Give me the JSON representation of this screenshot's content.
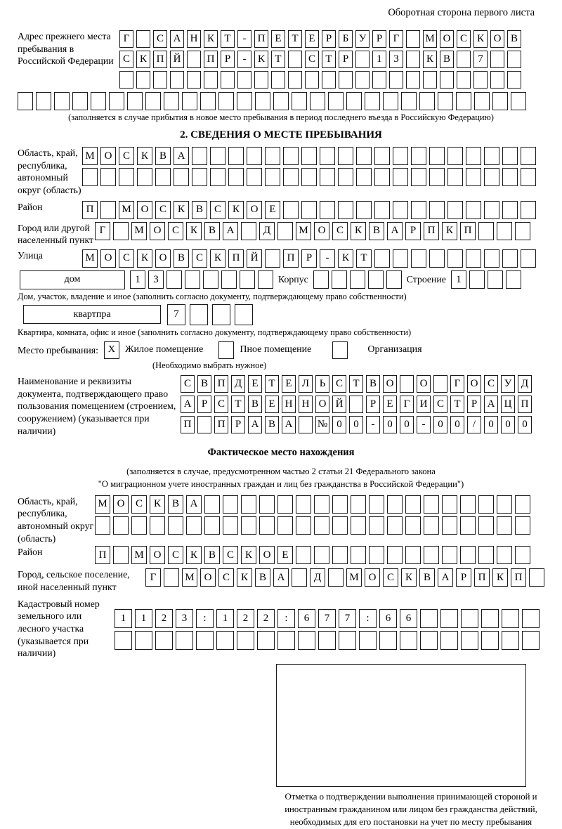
{
  "page": {
    "header_note": "Оборотная сторона первого листа"
  },
  "prev_address": {
    "label": "Адрес прежнего места пребывания в Российской Федерации",
    "rows": [
      [
        "Г",
        "",
        "С",
        "А",
        "Н",
        "К",
        "Т",
        "-",
        "П",
        "Е",
        "Т",
        "Е",
        "Р",
        "Б",
        "У",
        "Р",
        "Г",
        "",
        "М",
        "О",
        "С",
        "К",
        "О",
        "В"
      ],
      [
        "С",
        "К",
        "П",
        "Й",
        "",
        "П",
        "Р",
        "-",
        "К",
        "Т",
        "",
        "С",
        "Т",
        "Р",
        "",
        "1",
        "3",
        "",
        "К",
        "В",
        "",
        "7",
        "",
        ""
      ],
      [
        "",
        "",
        "",
        "",
        "",
        "",
        "",
        "",
        "",
        "",
        "",
        "",
        "",
        "",
        "",
        "",
        "",
        "",
        "",
        "",
        "",
        "",
        "",
        ""
      ]
    ],
    "full_row": [
      "",
      "",
      "",
      "",
      "",
      "",
      "",
      "",
      "",
      "",
      "",
      "",
      "",
      "",
      "",
      "",
      "",
      "",
      "",
      "",
      "",
      "",
      "",
      "",
      "",
      "",
      "",
      ""
    ],
    "note": "(заполняется в случае прибытия в новое место пребывания в период последнего въезда в Российскую Федерацию)"
  },
  "section2": {
    "title": "2. СВЕДЕНИЯ О МЕСТЕ ПРЕБЫВАНИЯ",
    "region": {
      "label": "Область, край, республика, автономный округ (область)",
      "rows": [
        [
          "М",
          "О",
          "С",
          "К",
          "В",
          "А",
          "",
          "",
          "",
          "",
          "",
          "",
          "",
          "",
          "",
          "",
          "",
          "",
          "",
          "",
          "",
          "",
          "",
          "",
          ""
        ],
        [
          "",
          "",
          "",
          "",
          "",
          "",
          "",
          "",
          "",
          "",
          "",
          "",
          "",
          "",
          "",
          "",
          "",
          "",
          "",
          "",
          "",
          "",
          "",
          "",
          ""
        ]
      ]
    },
    "district": {
      "label": "Район",
      "row": [
        "П",
        "",
        "М",
        "О",
        "С",
        "К",
        "В",
        "С",
        "К",
        "О",
        "Е",
        "",
        "",
        "",
        "",
        "",
        "",
        "",
        "",
        "",
        "",
        "",
        "",
        "",
        ""
      ]
    },
    "city": {
      "label": "Город или другой населенный пункт",
      "row": [
        "Г",
        "",
        "М",
        "О",
        "С",
        "К",
        "В",
        "А",
        "",
        "Д",
        "",
        "М",
        "О",
        "С",
        "К",
        "В",
        "А",
        "Р",
        "П",
        "К",
        "П",
        "",
        "",
        ""
      ]
    },
    "street": {
      "label": "Улица",
      "row": [
        "М",
        "О",
        "С",
        "К",
        "О",
        "В",
        "С",
        "К",
        "П",
        "Й",
        "",
        "П",
        "Р",
        "-",
        "К",
        "Т",
        "",
        "",
        "",
        "",
        "",
        "",
        "",
        "",
        ""
      ]
    },
    "house": {
      "house_label": "дом",
      "house_cells": [
        "1",
        "3",
        "",
        "",
        "",
        "",
        "",
        ""
      ],
      "korpus_label": "Корпус",
      "korpus_cells": [
        "",
        "",
        "",
        "",
        ""
      ],
      "stroenie_label": "Строение",
      "stroenie_cells": [
        "1",
        "",
        "",
        ""
      ]
    },
    "house_note": "Дом, участок, владение и иное (заполнить согласно документу, подтверждающему право собственности)",
    "apartment": {
      "label": "квартпра",
      "cells": [
        "7",
        "",
        "",
        ""
      ]
    },
    "apartment_note": "Квартира, комната, офис и иное (заполнить согласно документу, подтверждающему право собственности)",
    "stay_type": {
      "label": "Место пребывания:",
      "options": [
        {
          "label": "Жилое помещение",
          "mark": "X"
        },
        {
          "label": "Пное помещение",
          "mark": ""
        },
        {
          "label": "Организация",
          "mark": ""
        }
      ],
      "note": "(Необходимо выбрать нужное)"
    },
    "document": {
      "label": "Наименование и реквизиты документа, подтверждающего право пользования помещением (строением, сооружением) (указывается при наличии)",
      "rows": [
        [
          "С",
          "В",
          "П",
          "Д",
          "Е",
          "Т",
          "Е",
          "Л",
          "Ь",
          "С",
          "Т",
          "В",
          "О",
          "",
          "О",
          "",
          "Г",
          "О",
          "С",
          "У",
          "Д"
        ],
        [
          "А",
          "Р",
          "С",
          "Т",
          "В",
          "Е",
          "Н",
          "Н",
          "О",
          "Й",
          "",
          "Р",
          "Е",
          "Г",
          "И",
          "С",
          "Т",
          "Р",
          "А",
          "Ц",
          "П"
        ],
        [
          "П",
          "",
          "П",
          "Р",
          "А",
          "В",
          "А",
          "",
          "№",
          "0",
          "0",
          "-",
          "0",
          "0",
          "-",
          "0",
          "0",
          "/",
          "0",
          "0",
          "0"
        ]
      ]
    }
  },
  "actual_location": {
    "title": "Фактическое место нахождения",
    "note_line1": "(заполняется в случае, предусмотренном частью 2 статьи 21 Федерального закона",
    "note_line2": "\"О миграционном учете иностранных граждан и лиц без гражданства в Российской Федерации\")",
    "region": {
      "label": "Область, край, республика, автономный округ (область)",
      "rows": [
        [
          "М",
          "О",
          "С",
          "К",
          "В",
          "А",
          "",
          "",
          "",
          "",
          "",
          "",
          "",
          "",
          "",
          "",
          "",
          "",
          "",
          "",
          "",
          "",
          "",
          ""
        ],
        [
          "",
          "",
          "",
          "",
          "",
          "",
          "",
          "",
          "",
          "",
          "",
          "",
          "",
          "",
          "",
          "",
          "",
          "",
          "",
          "",
          "",
          "",
          "",
          ""
        ]
      ]
    },
    "district": {
      "label": "Район",
      "row": [
        "П",
        "",
        "М",
        "О",
        "С",
        "К",
        "В",
        "С",
        "К",
        "О",
        "Е",
        "",
        "",
        "",
        "",
        "",
        "",
        "",
        "",
        "",
        "",
        "",
        "",
        ""
      ]
    },
    "city": {
      "label": "Город, сельское поселение, иной населенный пункт",
      "row": [
        "Г",
        "",
        "М",
        "О",
        "С",
        "К",
        "В",
        "А",
        "",
        "Д",
        "",
        "М",
        "О",
        "С",
        "К",
        "В",
        "А",
        "Р",
        "П",
        "К",
        "П",
        ""
      ]
    },
    "cadastral": {
      "label": "Кадастровый номер земельного или лесного участка (указывается при наличии)",
      "rows": [
        [
          "1",
          "1",
          "2",
          "3",
          ":",
          "1",
          "2",
          "2",
          ":",
          "6",
          "7",
          "7",
          ":",
          "6",
          "6",
          "",
          "",
          "",
          "",
          "",
          ""
        ],
        [
          "",
          "",
          "",
          "",
          "",
          "",
          "",
          "",
          "",
          "",
          "",
          "",
          "",
          "",
          "",
          "",
          "",
          "",
          "",
          "",
          ""
        ]
      ]
    },
    "stamp_caption": "Отметка о подтверждении выполнения принимающей стороной и иностранным гражданином или лицом без гражданства действий, необходимых для его постановки на учет по месту пребывания"
  }
}
